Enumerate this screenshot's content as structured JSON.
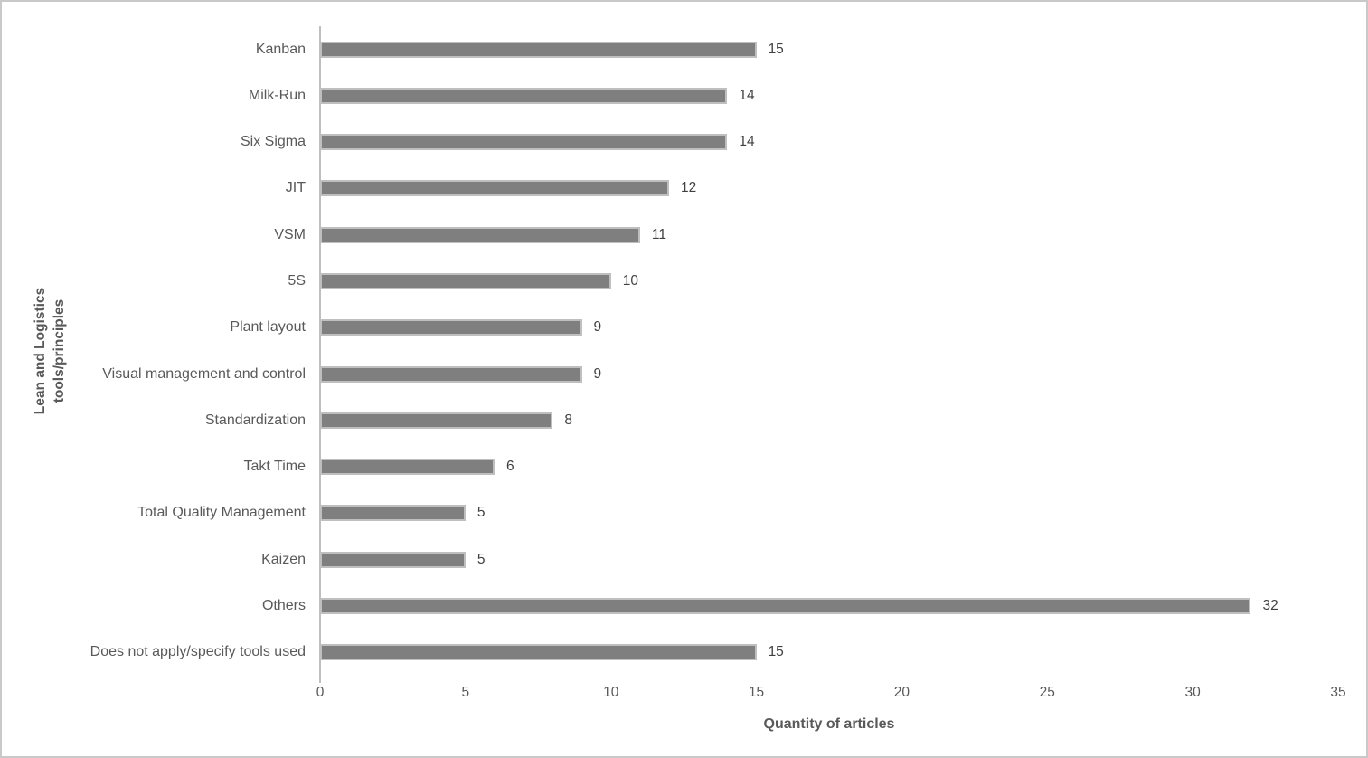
{
  "chart_data": {
    "type": "bar",
    "orientation": "horizontal",
    "title": "",
    "categories": [
      "Kanban",
      "Milk-Run",
      "Six Sigma",
      "JIT",
      "VSM",
      "5S",
      "Plant layout",
      "Visual management and control",
      "Standardization",
      "Takt Time",
      "Total Quality Management",
      "Kaizen",
      "Others",
      "Does not apply/specify tools used"
    ],
    "values": [
      15,
      14,
      14,
      12,
      11,
      10,
      9,
      9,
      8,
      6,
      5,
      5,
      32,
      15
    ],
    "xlabel": "Quantity of articles",
    "ylabel": "Lean and Logistics tools/principles",
    "ylabel_lines": [
      "Lean and Logistics",
      "tools/principles"
    ],
    "xlim": [
      0,
      35
    ],
    "xticks": [
      0,
      5,
      10,
      15,
      20,
      25,
      30,
      35
    ],
    "grid": false,
    "data_labels": true,
    "legend": "none",
    "colors": {
      "bar_fill": "#7F7F7F",
      "bar_border": "#BFBFBF",
      "axis_line": "#BFBFBF",
      "category_label": "#595959",
      "tick_label": "#595959",
      "value_label": "#404040",
      "axis_title": "#595959",
      "figure_border": "#C9C9C9"
    }
  }
}
